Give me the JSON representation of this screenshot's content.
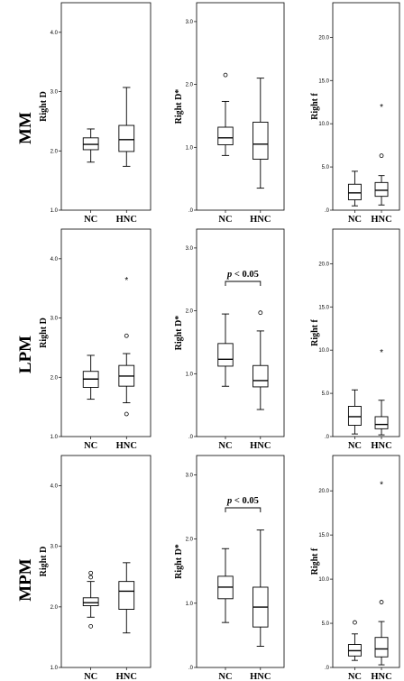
{
  "chart_data": [
    {
      "type": "box",
      "row_label": "MM",
      "ylabel": "Right D",
      "ylim": [
        1.0,
        4.5
      ],
      "yticks": [
        {
          "v": 1.0,
          "t": "1.0"
        },
        {
          "v": 2.0,
          "t": "2.0"
        },
        {
          "v": 3.0,
          "t": "3.0"
        },
        {
          "v": 4.0,
          "t": "4.0"
        }
      ],
      "categories": [
        "NC",
        "HNC"
      ],
      "sig": "",
      "boxes": [
        {
          "min": 1.81,
          "q1": 2.02,
          "median": 2.11,
          "q3": 2.22,
          "max": 2.37,
          "outliers": [],
          "extremes": []
        },
        {
          "min": 1.74,
          "q1": 1.99,
          "median": 2.19,
          "q3": 2.43,
          "max": 3.07,
          "outliers": [],
          "extremes": []
        }
      ]
    },
    {
      "type": "box",
      "row_label": "",
      "ylabel": "Right D*",
      "ylim": [
        0,
        3.3
      ],
      "yticks": [
        {
          "v": 0,
          "t": ".0"
        },
        {
          "v": 1,
          "t": "1.0"
        },
        {
          "v": 2,
          "t": "2.0"
        },
        {
          "v": 3,
          "t": "3.0"
        }
      ],
      "categories": [
        "NC",
        "HNC"
      ],
      "sig": "",
      "boxes": [
        {
          "min": 0.87,
          "q1": 1.04,
          "median": 1.15,
          "q3": 1.32,
          "max": 1.73,
          "outliers": [
            2.15
          ],
          "extremes": []
        },
        {
          "min": 0.35,
          "q1": 0.81,
          "median": 1.05,
          "q3": 1.4,
          "max": 2.1,
          "outliers": [],
          "extremes": []
        }
      ]
    },
    {
      "type": "box",
      "row_label": "",
      "ylabel": "Right f",
      "ylim": [
        0,
        24
      ],
      "yticks": [
        {
          "v": 0,
          "t": ".0"
        },
        {
          "v": 5,
          "t": "5.0"
        },
        {
          "v": 10,
          "t": "10.0"
        },
        {
          "v": 15,
          "t": "15.0"
        },
        {
          "v": 20,
          "t": "20.0"
        }
      ],
      "categories": [
        "NC",
        "HNC"
      ],
      "sig": "",
      "boxes": [
        {
          "min": 0.5,
          "q1": 1.2,
          "median": 2.0,
          "q3": 3.0,
          "max": 4.5,
          "outliers": [],
          "extremes": []
        },
        {
          "min": 0.6,
          "q1": 1.6,
          "median": 2.3,
          "q3": 3.2,
          "max": 4.0,
          "outliers": [
            6.3
          ],
          "extremes": [
            12.0
          ]
        }
      ]
    },
    {
      "type": "box",
      "row_label": "LPM",
      "ylabel": "Right D",
      "ylim": [
        1.0,
        4.5
      ],
      "yticks": [
        {
          "v": 1.0,
          "t": "1.0"
        },
        {
          "v": 2.0,
          "t": "2.0"
        },
        {
          "v": 3.0,
          "t": "3.0"
        },
        {
          "v": 4.0,
          "t": "4.0"
        }
      ],
      "categories": [
        "NC",
        "HNC"
      ],
      "sig": "",
      "boxes": [
        {
          "min": 1.63,
          "q1": 1.83,
          "median": 1.97,
          "q3": 2.1,
          "max": 2.37,
          "outliers": [],
          "extremes": []
        },
        {
          "min": 1.57,
          "q1": 1.85,
          "median": 2.02,
          "q3": 2.2,
          "max": 2.4,
          "outliers": [
            1.38,
            2.7
          ],
          "extremes": [
            3.65
          ]
        }
      ]
    },
    {
      "type": "box",
      "row_label": "",
      "ylabel": "Right D*",
      "ylim": [
        0,
        3.3
      ],
      "yticks": [
        {
          "v": 0,
          "t": ".0"
        },
        {
          "v": 1,
          "t": "1.0"
        },
        {
          "v": 2,
          "t": "2.0"
        },
        {
          "v": 3,
          "t": "3.0"
        }
      ],
      "categories": [
        "NC",
        "HNC"
      ],
      "sig": "p < 0.05",
      "boxes": [
        {
          "min": 0.8,
          "q1": 1.12,
          "median": 1.23,
          "q3": 1.48,
          "max": 1.95,
          "outliers": [],
          "extremes": []
        },
        {
          "min": 0.43,
          "q1": 0.79,
          "median": 0.89,
          "q3": 1.13,
          "max": 1.68,
          "outliers": [
            1.97
          ],
          "extremes": []
        }
      ]
    },
    {
      "type": "box",
      "row_label": "",
      "ylabel": "Right f",
      "ylim": [
        0,
        24
      ],
      "yticks": [
        {
          "v": 0,
          "t": ".0"
        },
        {
          "v": 5,
          "t": "5.0"
        },
        {
          "v": 10,
          "t": "10.0"
        },
        {
          "v": 15,
          "t": "15.0"
        },
        {
          "v": 20,
          "t": "20.0"
        }
      ],
      "categories": [
        "NC",
        "HNC"
      ],
      "sig": "",
      "boxes": [
        {
          "min": 0.3,
          "q1": 1.3,
          "median": 2.3,
          "q3": 3.5,
          "max": 5.4,
          "outliers": [],
          "extremes": []
        },
        {
          "min": 0.2,
          "q1": 0.9,
          "median": 1.4,
          "q3": 2.3,
          "max": 4.2,
          "outliers": [],
          "extremes": [
            9.8
          ]
        }
      ]
    },
    {
      "type": "box",
      "row_label": "MPM",
      "ylabel": "Right D",
      "ylim": [
        1.0,
        4.5
      ],
      "yticks": [
        {
          "v": 1.0,
          "t": "1.0"
        },
        {
          "v": 2.0,
          "t": "2.0"
        },
        {
          "v": 3.0,
          "t": "3.0"
        },
        {
          "v": 4.0,
          "t": "4.0"
        }
      ],
      "categories": [
        "NC",
        "HNC"
      ],
      "sig": "",
      "boxes": [
        {
          "min": 1.83,
          "q1": 2.02,
          "median": 2.07,
          "q3": 2.15,
          "max": 2.42,
          "outliers": [
            1.68,
            2.49,
            2.56
          ],
          "extremes": []
        },
        {
          "min": 1.57,
          "q1": 1.96,
          "median": 2.26,
          "q3": 2.42,
          "max": 2.73,
          "outliers": [],
          "extremes": []
        }
      ]
    },
    {
      "type": "box",
      "row_label": "",
      "ylabel": "Right D*",
      "ylim": [
        0,
        3.3
      ],
      "yticks": [
        {
          "v": 0,
          "t": ".0"
        },
        {
          "v": 1,
          "t": "1.0"
        },
        {
          "v": 2,
          "t": "2.0"
        },
        {
          "v": 3,
          "t": "3.0"
        }
      ],
      "categories": [
        "NC",
        "HNC"
      ],
      "sig": "p < 0.05",
      "boxes": [
        {
          "min": 0.7,
          "q1": 1.07,
          "median": 1.25,
          "q3": 1.42,
          "max": 1.85,
          "outliers": [],
          "extremes": []
        },
        {
          "min": 0.33,
          "q1": 0.63,
          "median": 0.94,
          "q3": 1.25,
          "max": 2.14,
          "outliers": [],
          "extremes": []
        }
      ]
    },
    {
      "type": "box",
      "row_label": "",
      "ylabel": "Right f",
      "ylim": [
        0,
        24
      ],
      "yticks": [
        {
          "v": 0,
          "t": ".0"
        },
        {
          "v": 5,
          "t": "5.0"
        },
        {
          "v": 10,
          "t": "10.0"
        },
        {
          "v": 15,
          "t": "15.0"
        },
        {
          "v": 20,
          "t": "20.0"
        }
      ],
      "categories": [
        "NC",
        "HNC"
      ],
      "sig": "",
      "boxes": [
        {
          "min": 0.8,
          "q1": 1.3,
          "median": 1.9,
          "q3": 2.6,
          "max": 3.8,
          "outliers": [
            5.1
          ],
          "extremes": []
        },
        {
          "min": 0.3,
          "q1": 1.2,
          "median": 2.1,
          "q3": 3.4,
          "max": 5.2,
          "outliers": [
            7.4
          ],
          "extremes": [
            20.8
          ]
        }
      ]
    }
  ]
}
